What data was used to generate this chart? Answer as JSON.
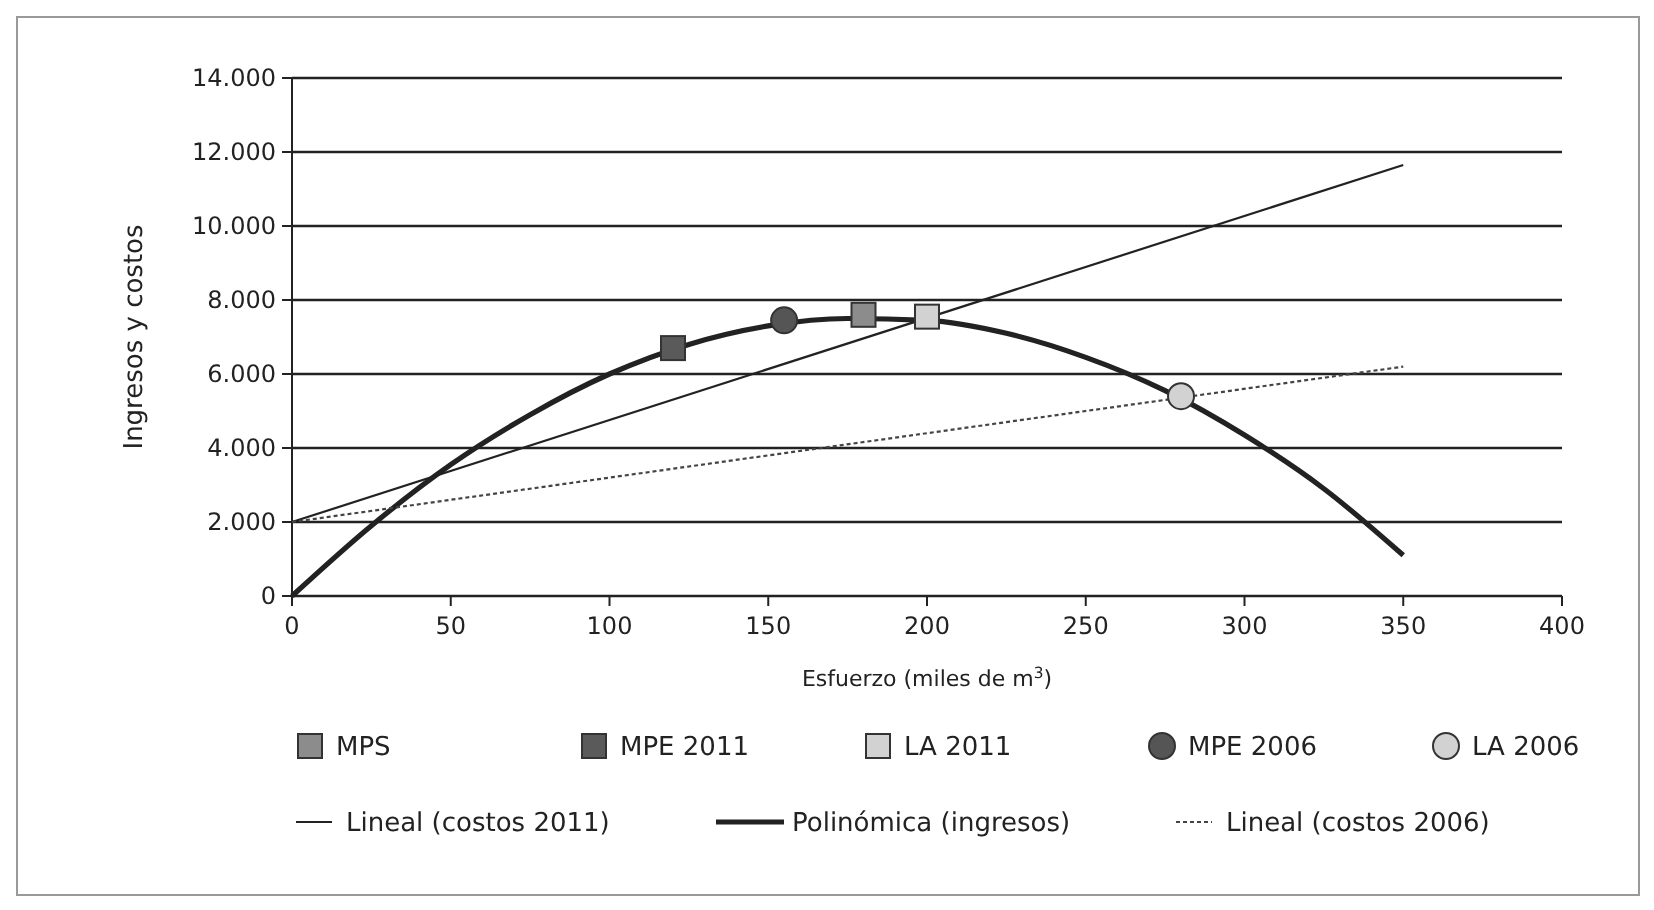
{
  "chart_data": {
    "type": "scatter",
    "xlabel": "Esfuerzo (miles de m$^{3}$)",
    "ylabel": "Ingresos y costos",
    "xlim": [
      0,
      400
    ],
    "xticks": [
      0,
      50,
      100,
      150,
      200,
      250,
      300,
      350,
      400
    ],
    "ylim": [
      0,
      14000
    ],
    "yticks": [
      0,
      {
        "value": 2000,
        "label": "2.000"
      },
      {
        "value": 4000,
        "label": "4.000"
      },
      {
        "value": 6000,
        "label": "6.000"
      },
      {
        "value": 8000,
        "label": "8.000"
      },
      {
        "value": 10000,
        "label": "10.000"
      },
      {
        "value": 12000,
        "label": "12.000"
      },
      {
        "value": 14000,
        "label": "14.000"
      }
    ],
    "grid": "y",
    "legend": "bottom",
    "series": [
      {
        "name": "MPS",
        "marker": "square",
        "color": "#8c8c8c",
        "x": [
          180
        ],
        "values": [
          7600
        ]
      },
      {
        "name": "MPE 2011",
        "marker": "square",
        "color": "#5a5a5a",
        "x": [
          120
        ],
        "values": [
          6700
        ]
      },
      {
        "name": "LA 2011",
        "marker": "square",
        "color": "#d2d2d2",
        "x": [
          200
        ],
        "values": [
          7550
        ]
      },
      {
        "name": "MPE 2006",
        "marker": "circle",
        "color": "#555555",
        "x": [
          155
        ],
        "values": [
          7450
        ]
      },
      {
        "name": "LA 2006",
        "marker": "circle",
        "color": "#d2d2d2",
        "x": [
          280
        ],
        "values": [
          5400
        ]
      },
      {
        "name": "Lineal (costos 2011)",
        "type": "line",
        "line_style": "solid",
        "color": "#222222",
        "x": [
          0,
          350
        ],
        "values": [
          2000,
          11650
        ]
      },
      {
        "name": "Polinómica (ingresos)",
        "type": "line",
        "line_style": "solid",
        "color": "#222222",
        "x": [
          0,
          25,
          50,
          75,
          100,
          125,
          150,
          175,
          200,
          225,
          250,
          275,
          300,
          325,
          350
        ],
        "values": [
          0,
          1900,
          3550,
          4900,
          6000,
          6800,
          7300,
          7500,
          7450,
          7100,
          6450,
          5550,
          4350,
          2900,
          1100
        ]
      },
      {
        "name": "Lineal (costos 2006)",
        "type": "line",
        "line_style": "dotted",
        "color": "#444444",
        "x": [
          0,
          350
        ],
        "values": [
          2000,
          6200
        ]
      }
    ]
  }
}
